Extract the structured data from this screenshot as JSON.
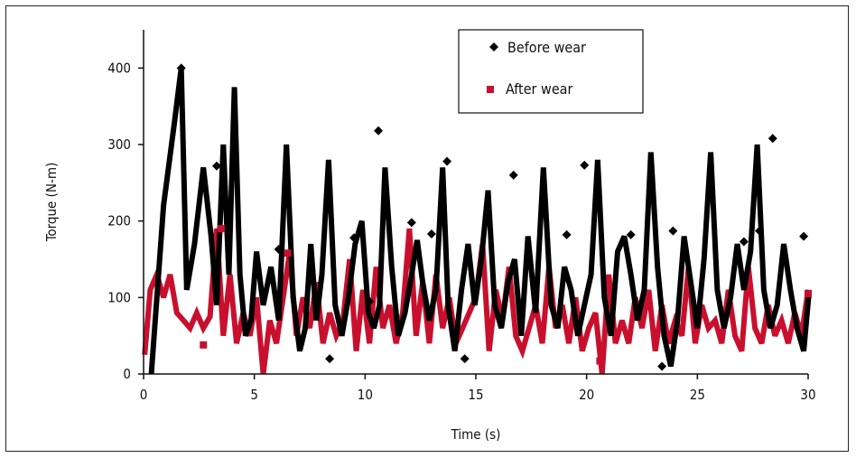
{
  "chart_data": {
    "type": "line",
    "title": "",
    "xlabel": "Time (s)",
    "ylabel": "Torque (N-m)",
    "xlim": [
      0,
      30
    ],
    "ylim": [
      0,
      450
    ],
    "x_ticks": [
      "0",
      "5",
      "10",
      "15",
      "20",
      "25",
      "30"
    ],
    "y_ticks": [
      "0",
      "100",
      "200",
      "300",
      "400"
    ],
    "grid": false,
    "legend_position": "top-center",
    "series": [
      {
        "name": "Before wear",
        "color": "#000000",
        "marker": "diamond",
        "x": [
          0.35,
          0.9,
          1.4,
          1.7,
          1.95,
          2.3,
          2.7,
          3.05,
          3.3,
          3.6,
          3.85,
          4.1,
          4.35,
          4.6,
          4.85,
          5.1,
          5.4,
          5.75,
          6.1,
          6.45,
          6.75,
          7.05,
          7.3,
          7.55,
          7.8,
          8.05,
          8.35,
          8.65,
          8.95,
          9.25,
          9.55,
          9.85,
          10.15,
          10.4,
          10.65,
          10.9,
          11.2,
          11.5,
          11.8,
          12.1,
          12.35,
          12.6,
          12.9,
          13.2,
          13.5,
          13.75,
          14.05,
          14.35,
          14.65,
          14.95,
          15.25,
          15.55,
          15.85,
          16.15,
          16.45,
          16.75,
          17.05,
          17.35,
          17.7,
          18.05,
          18.4,
          18.7,
          19.0,
          19.3,
          19.6,
          19.9,
          20.2,
          20.5,
          20.8,
          21.1,
          21.4,
          21.7,
          22.0,
          22.3,
          22.6,
          22.9,
          23.2,
          23.5,
          23.8,
          24.1,
          24.4,
          24.7,
          25.0,
          25.3,
          25.6,
          25.9,
          26.2,
          26.5,
          26.8,
          27.1,
          27.4,
          27.7,
          28.0,
          28.3,
          28.6,
          28.9,
          29.2,
          29.5,
          29.8,
          30.05
        ],
        "y": [
          0,
          220,
          330,
          400,
          110,
          170,
          270,
          180,
          90,
          300,
          130,
          375,
          130,
          50,
          70,
          160,
          90,
          140,
          70,
          300,
          100,
          30,
          60,
          170,
          70,
          130,
          280,
          90,
          50,
          100,
          170,
          200,
          80,
          60,
          90,
          270,
          140,
          50,
          80,
          130,
          175,
          120,
          70,
          110,
          270,
          90,
          30,
          110,
          170,
          90,
          150,
          240,
          90,
          60,
          120,
          150,
          50,
          180,
          80,
          270,
          90,
          60,
          140,
          110,
          50,
          90,
          130,
          280,
          100,
          50,
          160,
          180,
          130,
          70,
          110,
          290,
          140,
          50,
          10,
          70,
          180,
          120,
          60,
          150,
          290,
          110,
          60,
          100,
          170,
          110,
          160,
          300,
          110,
          60,
          90,
          170,
          110,
          60,
          30,
          110
        ],
        "markers": [
          {
            "x": 1.7,
            "y": 400
          },
          {
            "x": 3.3,
            "y": 272
          },
          {
            "x": 6.1,
            "y": 163
          },
          {
            "x": 8.4,
            "y": 20
          },
          {
            "x": 9.5,
            "y": 178
          },
          {
            "x": 10.2,
            "y": 95
          },
          {
            "x": 10.6,
            "y": 318
          },
          {
            "x": 12.1,
            "y": 198
          },
          {
            "x": 13.0,
            "y": 183
          },
          {
            "x": 13.7,
            "y": 278
          },
          {
            "x": 14.5,
            "y": 20
          },
          {
            "x": 16.7,
            "y": 260
          },
          {
            "x": 19.1,
            "y": 182
          },
          {
            "x": 19.9,
            "y": 273
          },
          {
            "x": 22.0,
            "y": 182
          },
          {
            "x": 23.4,
            "y": 10
          },
          {
            "x": 23.9,
            "y": 187
          },
          {
            "x": 27.1,
            "y": 173
          },
          {
            "x": 27.8,
            "y": 187
          },
          {
            "x": 28.4,
            "y": 308
          },
          {
            "x": 29.8,
            "y": 180
          }
        ]
      },
      {
        "name": "After wear",
        "color": "#c8102e",
        "marker": "square",
        "x": [
          0.05,
          0.3,
          0.6,
          0.9,
          1.2,
          1.5,
          1.8,
          2.1,
          2.4,
          2.7,
          3.0,
          3.3,
          3.6,
          3.9,
          4.2,
          4.5,
          4.8,
          5.1,
          5.4,
          5.7,
          6.0,
          6.3,
          6.6,
          6.9,
          7.2,
          7.5,
          7.8,
          8.1,
          8.4,
          8.7,
          9.0,
          9.3,
          9.6,
          9.9,
          10.2,
          10.5,
          10.8,
          11.1,
          11.4,
          11.7,
          12.0,
          12.3,
          12.6,
          12.9,
          13.2,
          13.5,
          13.8,
          14.1,
          14.4,
          14.7,
          15.0,
          15.3,
          15.6,
          15.9,
          16.2,
          16.5,
          16.8,
          17.1,
          17.4,
          17.7,
          18.0,
          18.3,
          18.6,
          18.9,
          19.2,
          19.5,
          19.8,
          20.1,
          20.4,
          20.7,
          21.0,
          21.3,
          21.6,
          21.9,
          22.2,
          22.5,
          22.8,
          23.1,
          23.4,
          23.7,
          24.0,
          24.3,
          24.6,
          24.9,
          25.2,
          25.5,
          25.8,
          26.1,
          26.4,
          26.7,
          27.0,
          27.3,
          27.6,
          27.9,
          28.2,
          28.5,
          28.8,
          29.1,
          29.4,
          29.7,
          30.0
        ],
        "y": [
          25,
          110,
          130,
          100,
          130,
          80,
          70,
          60,
          80,
          60,
          75,
          190,
          50,
          130,
          40,
          80,
          50,
          100,
          0,
          70,
          40,
          100,
          160,
          50,
          100,
          60,
          120,
          40,
          80,
          50,
          70,
          150,
          30,
          110,
          40,
          140,
          60,
          90,
          40,
          80,
          190,
          50,
          120,
          40,
          130,
          60,
          100,
          40,
          60,
          80,
          100,
          170,
          30,
          110,
          70,
          140,
          50,
          30,
          60,
          90,
          40,
          140,
          60,
          90,
          40,
          100,
          30,
          60,
          80,
          0,
          130,
          40,
          70,
          40,
          100,
          60,
          110,
          30,
          90,
          40,
          70,
          50,
          140,
          40,
          90,
          60,
          70,
          40,
          110,
          50,
          30,
          140,
          60,
          40,
          90,
          50,
          70,
          40,
          80,
          50,
          110
        ],
        "markers": [
          {
            "x": 2.7,
            "y": 38
          },
          {
            "x": 3.5,
            "y": 190
          },
          {
            "x": 6.5,
            "y": 158
          },
          {
            "x": 20.6,
            "y": 17
          },
          {
            "x": 30.0,
            "y": 105
          }
        ]
      }
    ]
  }
}
